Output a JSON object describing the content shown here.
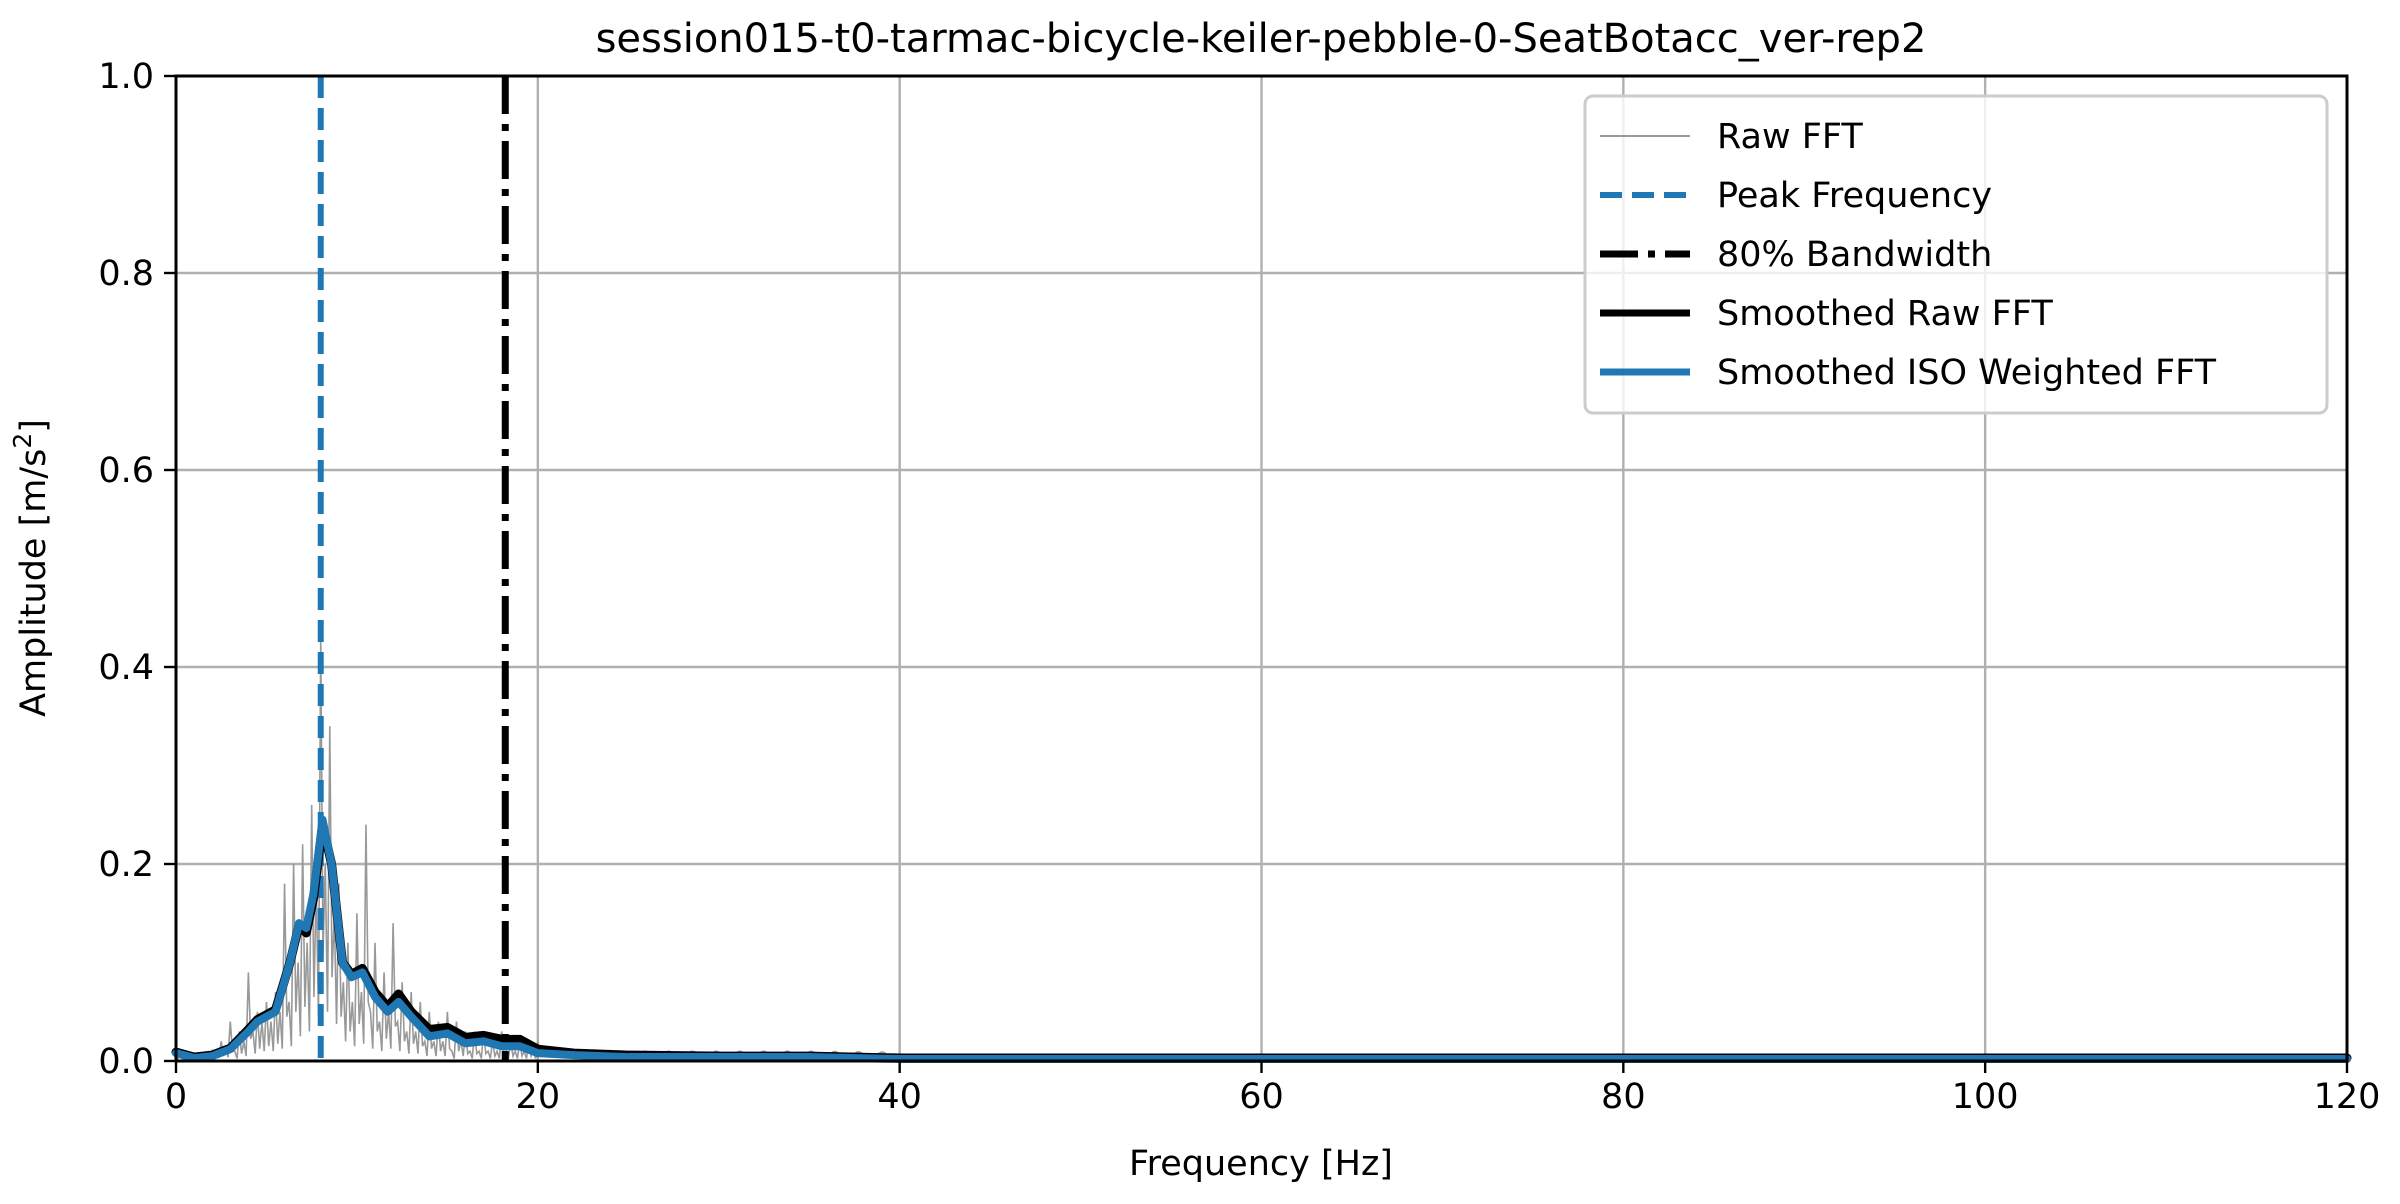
{
  "chart_data": {
    "type": "line",
    "title": "session015-t0-tarmac-bicycle-keiler-pebble-0-SeatBotacc_ver-rep2",
    "xlabel": "Frequency [Hz]",
    "ylabel_main": "Amplitude [m/s",
    "ylabel_sup": "2",
    "ylabel_end": "]",
    "xlim": [
      0,
      120
    ],
    "ylim": [
      0,
      1.0
    ],
    "xticks": [
      0,
      20,
      40,
      60,
      80,
      100,
      120
    ],
    "xtick_labels": [
      "0",
      "20",
      "40",
      "60",
      "80",
      "100",
      "120"
    ],
    "yticks": [
      0,
      0.2,
      0.4,
      0.6,
      0.8,
      1.0
    ],
    "ytick_labels": [
      "0.0",
      "0.2",
      "0.4",
      "0.6",
      "0.8",
      "1.0"
    ],
    "grid": true,
    "legend_position": "top-right",
    "legend": [
      "Raw FFT",
      "Peak Frequency",
      "80% Bandwidth",
      "Smoothed Raw FFT",
      "Smoothed ISO Weighted FFT"
    ],
    "colors": {
      "raw": "#999999",
      "peak": "#1f77b4",
      "bandwidth": "#000000",
      "smoothed_raw": "#000000",
      "smoothed_iso": "#1f77b4",
      "grid": "#b0b0b0"
    },
    "peak_frequency": 8.0,
    "bandwidth_80": 18.2,
    "raw_fft": {
      "x_start": 0,
      "x_step": 0.25,
      "values": [
        0.01,
        0.005,
        0.004,
        0.006,
        0.005,
        0.004,
        0.006,
        0.008,
        0.01,
        0.012,
        0.02,
        0.015,
        0.04,
        0.01,
        0.03,
        0.02,
        0.09,
        0.03,
        0.05,
        0.04,
        0.06,
        0.04,
        0.07,
        0.05,
        0.18,
        0.06,
        0.2,
        0.1,
        0.22,
        0.12,
        0.26,
        0.18,
        0.43,
        0.2,
        0.34,
        0.15,
        0.18,
        0.08,
        0.12,
        0.06,
        0.15,
        0.07,
        0.24,
        0.05,
        0.12,
        0.04,
        0.09,
        0.05,
        0.14,
        0.04,
        0.08,
        0.03,
        0.07,
        0.03,
        0.06,
        0.02,
        0.05,
        0.02,
        0.04,
        0.02,
        0.05,
        0.01,
        0.04,
        0.02,
        0.03,
        0.01,
        0.03,
        0.01,
        0.03,
        0.01,
        0.02,
        0.01,
        0.03,
        0.01,
        0.02,
        0.01,
        0.02,
        0.01,
        0.02,
        0.01,
        0.02
      ]
    },
    "series": [
      {
        "name": "Smoothed Raw FFT",
        "x": [
          0,
          1,
          2,
          3,
          4,
          4.5,
          5.5,
          6.3,
          6.8,
          7.2,
          7.6,
          8.1,
          8.6,
          9.2,
          9.7,
          10.3,
          11,
          11.7,
          12.3,
          13,
          14,
          15,
          16,
          17,
          18,
          19,
          20,
          22,
          25,
          30,
          35,
          40,
          60,
          120
        ],
        "values": [
          0.009,
          0.004,
          0.006,
          0.013,
          0.032,
          0.042,
          0.052,
          0.1,
          0.138,
          0.13,
          0.165,
          0.24,
          0.2,
          0.1,
          0.088,
          0.094,
          0.07,
          0.055,
          0.068,
          0.05,
          0.032,
          0.034,
          0.024,
          0.026,
          0.022,
          0.022,
          0.012,
          0.008,
          0.006,
          0.005,
          0.005,
          0.003,
          0.003,
          0.003
        ]
      },
      {
        "name": "Smoothed ISO Weighted FFT",
        "x": [
          0,
          1,
          2,
          3,
          4,
          4.5,
          5.5,
          6.3,
          6.8,
          7.2,
          7.6,
          8.1,
          8.6,
          9.2,
          9.7,
          10.3,
          11,
          11.7,
          12.3,
          13,
          14,
          15,
          16,
          17,
          18,
          19,
          20,
          22,
          25,
          30,
          35,
          40,
          60,
          120
        ],
        "values": [
          0.008,
          0.003,
          0.005,
          0.012,
          0.03,
          0.04,
          0.05,
          0.1,
          0.14,
          0.135,
          0.17,
          0.245,
          0.2,
          0.1,
          0.085,
          0.09,
          0.065,
          0.05,
          0.06,
          0.045,
          0.025,
          0.028,
          0.018,
          0.02,
          0.015,
          0.015,
          0.008,
          0.006,
          0.004,
          0.004,
          0.004,
          0.002,
          0.002,
          0.002
        ]
      }
    ]
  }
}
